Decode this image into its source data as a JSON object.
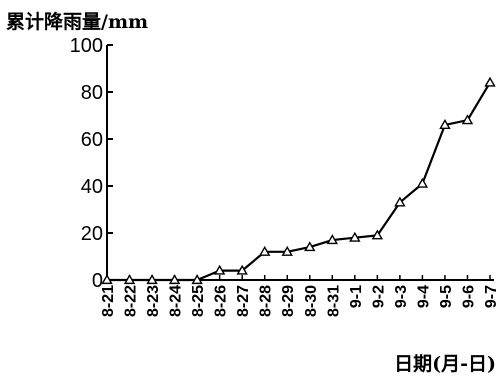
{
  "chart_data": {
    "type": "line",
    "title": "",
    "ylabel": "累计降雨量/mm",
    "xlabel": "日期(月-日)",
    "categories": [
      "8-21",
      "8-22",
      "8-23",
      "8-24",
      "8-25",
      "8-26",
      "8-27",
      "8-28",
      "8-29",
      "8-30",
      "8-31",
      "9-1",
      "9-2",
      "9-3",
      "9-4",
      "9-5",
      "9-6",
      "9-7"
    ],
    "series": [
      {
        "values": [
          0,
          0,
          0,
          0,
          0,
          4,
          4,
          12,
          12,
          14,
          17,
          18,
          19,
          33,
          41,
          66,
          68,
          84
        ]
      }
    ],
    "ylim": [
      0,
      100
    ],
    "yticks": [
      0,
      20,
      40,
      60,
      80,
      100
    ],
    "grid": false,
    "marker": "open-triangle",
    "line_color": "#000000"
  }
}
